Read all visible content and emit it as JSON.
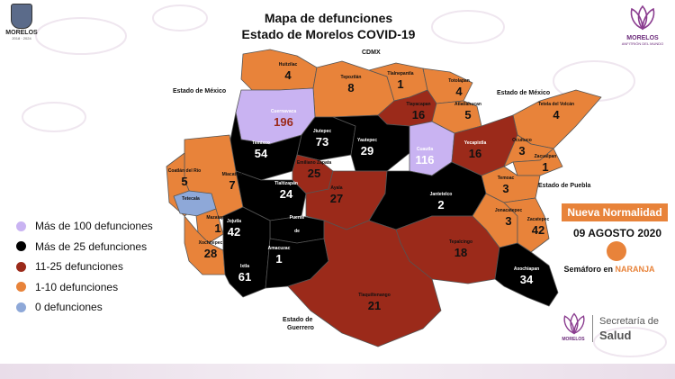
{
  "header": {
    "title_line1": "Mapa de defunciones",
    "title_line2": "Estado de Morelos COVID-19"
  },
  "logo_left": {
    "name": "MORELOS",
    "years": "2018 · 2024"
  },
  "logo_right": {
    "name": "MORELOS",
    "sub": "ANFITRIÓN DEL MUNDO"
  },
  "neighbors": {
    "cdmx": "CDMX",
    "mexico_left": "Estado de México",
    "mexico_right": "Estado de México",
    "puebla": "Estado de Puebla",
    "guerrero_1": "Estado de",
    "guerrero_2": "Guerrero"
  },
  "legend": [
    {
      "label": "Más de 100 defunciones",
      "color": "#c9b3f2"
    },
    {
      "label": "Más de 25 defunciones",
      "color": "#000000"
    },
    {
      "label": "11-25 defunciones",
      "color": "#9b2a1a"
    },
    {
      "label": "1-10 defunciones",
      "color": "#e8833a"
    },
    {
      "label": "0 defunciones",
      "color": "#8ea8d8"
    }
  ],
  "municipalities": [
    {
      "name": "Huitzilac",
      "count": "4"
    },
    {
      "name": "Tepoztlán",
      "count": "8"
    },
    {
      "name": "Tlalnepantla",
      "count": "1"
    },
    {
      "name": "Totolapan",
      "count": "4"
    },
    {
      "name": "Tlayacapan",
      "count": "16"
    },
    {
      "name": "Atlatlahucan",
      "count": "5"
    },
    {
      "name": "Tetela del Volcán",
      "count": "4"
    },
    {
      "name": "Cuernavaca",
      "count": "196"
    },
    {
      "name": "Jiutepec",
      "count": "73"
    },
    {
      "name": "Yautepec",
      "count": "29"
    },
    {
      "name": "Cuautla",
      "count": "116"
    },
    {
      "name": "Yecapixtla",
      "count": "16"
    },
    {
      "name": "Ocuituco",
      "count": "3"
    },
    {
      "name": "Zacualpan",
      "count": "1"
    },
    {
      "name": "Temoac",
      "count": "3"
    },
    {
      "name": "Temixco",
      "count": "54"
    },
    {
      "name": "Emiliano Zapata",
      "count": "25"
    },
    {
      "name": "Miacatlán",
      "count": "7"
    },
    {
      "name": "Coatlán del Río",
      "count": "5"
    },
    {
      "name": "Tetecala",
      "count": ""
    },
    {
      "name": "Mazatepec",
      "count": "1"
    },
    {
      "name": "Xochitepec",
      "count": "28"
    },
    {
      "name": "Tlaltizapán",
      "count": "24"
    },
    {
      "name": "Ayala",
      "count": "27"
    },
    {
      "name": "Jantetelco",
      "count": "2"
    },
    {
      "name": "Jonacatepec",
      "count": "3"
    },
    {
      "name": "Zacatepec",
      "count": "42"
    },
    {
      "name": "Puente de Ixtla",
      "count": ""
    },
    {
      "name": "Jojutla",
      "count": "42"
    },
    {
      "name": "Amacuzac",
      "count": "1"
    },
    {
      "name": "Tepalcingo",
      "count": "18"
    },
    {
      "name": "Tlaquiltenango",
      "count": "21"
    },
    {
      "name": "Axochiapan",
      "count": "34"
    },
    {
      "name": "Ixtla",
      "count": "61"
    }
  ],
  "label_puente": "Puente",
  "label_de": "de",
  "nueva_normalidad": "Nueva Normalidad",
  "date": "09 AGOSTO 2020",
  "semaforo_prefix": "Semáforo en ",
  "semaforo_color": "NARANJA",
  "salud": {
    "mini": "MORELOS",
    "line1": "Secretaría de",
    "line2": "Salud"
  },
  "colors": {
    "orange": "#e8833a",
    "dark_red": "#9b2a1a",
    "black": "#000000",
    "lilac": "#c9b3f2",
    "blue": "#8ea8d8"
  }
}
